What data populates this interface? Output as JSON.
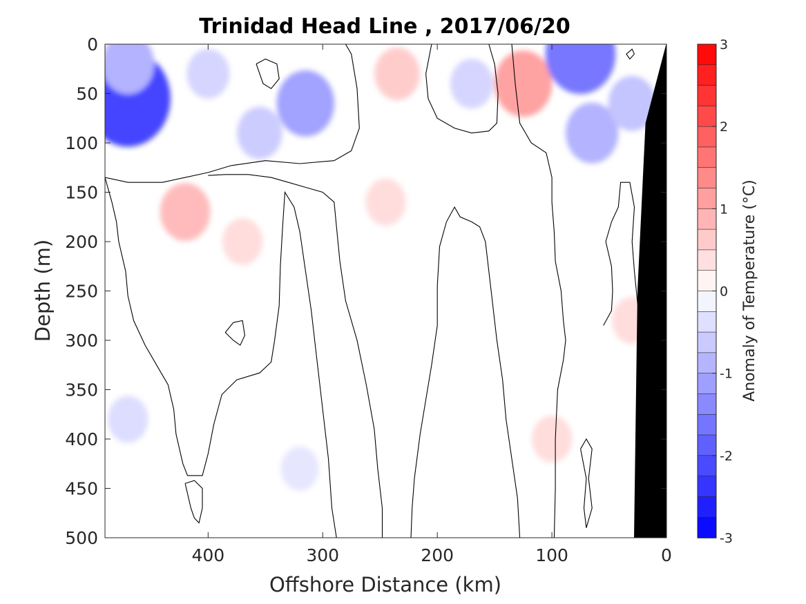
{
  "chart_data": {
    "type": "heatmap",
    "title": "Trinidad Head Line , 2017/06/20",
    "xlabel": "Offshore Distance (km)",
    "ylabel": "Depth (m)",
    "xlim": [
      490,
      0
    ],
    "ylim": [
      0,
      500
    ],
    "x_reversed": true,
    "y_reversed": true,
    "xticks": [
      400,
      300,
      200,
      100,
      0
    ],
    "yticks": [
      0,
      50,
      100,
      150,
      200,
      250,
      300,
      350,
      400,
      450,
      500
    ],
    "colorbar": {
      "label": "Anomaly of Temperature (°C)",
      "range": [
        -3,
        3
      ],
      "step": 0.25,
      "ticks": [
        3,
        2,
        1,
        0,
        -1,
        -2,
        -3
      ],
      "tick_labels": [
        "3",
        "2",
        "1",
        "0",
        "-1",
        "-2",
        "-3"
      ],
      "low_color": "#0000ff",
      "high_color": "#ff0000",
      "mid_color": "#ffffff"
    },
    "contour_levels": [
      0
    ],
    "anomaly_regions": [
      {
        "x": 470,
        "depth": 55,
        "value": -2.2
      },
      {
        "x": 470,
        "depth": 20,
        "value": -0.9
      },
      {
        "x": 400,
        "depth": 30,
        "value": -0.5
      },
      {
        "x": 355,
        "depth": 90,
        "value": -0.6
      },
      {
        "x": 315,
        "depth": 60,
        "value": -1.1
      },
      {
        "x": 235,
        "depth": 30,
        "value": 0.6
      },
      {
        "x": 245,
        "depth": 160,
        "value": 0.4
      },
      {
        "x": 420,
        "depth": 170,
        "value": 0.8
      },
      {
        "x": 370,
        "depth": 200,
        "value": 0.4
      },
      {
        "x": 170,
        "depth": 40,
        "value": -0.5
      },
      {
        "x": 125,
        "depth": 40,
        "value": 1.1
      },
      {
        "x": 75,
        "depth": 10,
        "value": -1.6
      },
      {
        "x": 65,
        "depth": 90,
        "value": -0.9
      },
      {
        "x": 30,
        "depth": 60,
        "value": -0.7
      },
      {
        "x": 470,
        "depth": 380,
        "value": -0.4
      },
      {
        "x": 320,
        "depth": 430,
        "value": -0.3
      },
      {
        "x": 100,
        "depth": 400,
        "value": 0.4
      },
      {
        "x": 30,
        "depth": 280,
        "value": 0.4
      }
    ],
    "zero_contours": [
      [
        [
          490,
          135
        ],
        [
          470,
          140
        ],
        [
          440,
          140
        ],
        [
          420,
          135
        ],
        [
          400,
          130
        ],
        [
          380,
          123
        ],
        [
          350,
          118
        ],
        [
          320,
          121
        ],
        [
          290,
          118
        ],
        [
          275,
          108
        ],
        [
          268,
          85
        ],
        [
          270,
          45
        ],
        [
          275,
          10
        ],
        [
          280,
          0
        ]
      ],
      [
        [
          490,
          135
        ],
        [
          484,
          160
        ],
        [
          480,
          180
        ],
        [
          478,
          200
        ],
        [
          472,
          230
        ],
        [
          470,
          255
        ],
        [
          465,
          280
        ],
        [
          455,
          305
        ],
        [
          445,
          325
        ],
        [
          435,
          345
        ],
        [
          430,
          370
        ],
        [
          428,
          395
        ],
        [
          422,
          425
        ],
        [
          418,
          437
        ],
        [
          405,
          437
        ],
        [
          400,
          415
        ],
        [
          395,
          385
        ],
        [
          388,
          355
        ],
        [
          375,
          340
        ],
        [
          355,
          333
        ],
        [
          345,
          322
        ],
        [
          342,
          300
        ],
        [
          338,
          265
        ],
        [
          337,
          225
        ],
        [
          335,
          185
        ],
        [
          333,
          150
        ],
        [
          325,
          165
        ],
        [
          320,
          190
        ],
        [
          315,
          230
        ],
        [
          310,
          270
        ],
        [
          305,
          320
        ],
        [
          300,
          370
        ],
        [
          295,
          420
        ],
        [
          292,
          470
        ],
        [
          288,
          500
        ]
      ],
      [
        [
          248,
          500
        ],
        [
          248,
          470
        ],
        [
          252,
          430
        ],
        [
          255,
          390
        ],
        [
          262,
          345
        ],
        [
          270,
          300
        ],
        [
          280,
          260
        ],
        [
          285,
          220
        ],
        [
          288,
          185
        ],
        [
          290,
          160
        ],
        [
          300,
          150
        ],
        [
          315,
          145
        ],
        [
          330,
          140
        ],
        [
          345,
          135
        ],
        [
          365,
          132
        ],
        [
          385,
          132
        ],
        [
          400,
          133
        ]
      ],
      [
        [
          205,
          0
        ],
        [
          210,
          30
        ],
        [
          208,
          55
        ],
        [
          200,
          75
        ],
        [
          185,
          85
        ],
        [
          170,
          90
        ],
        [
          155,
          88
        ],
        [
          148,
          80
        ],
        [
          147,
          50
        ],
        [
          150,
          20
        ],
        [
          155,
          0
        ]
      ],
      [
        [
          128,
          500
        ],
        [
          130,
          460
        ],
        [
          135,
          420
        ],
        [
          140,
          380
        ],
        [
          143,
          340
        ],
        [
          148,
          300
        ],
        [
          152,
          260
        ],
        [
          155,
          230
        ],
        [
          158,
          200
        ],
        [
          163,
          185
        ],
        [
          170,
          180
        ],
        [
          180,
          175
        ],
        [
          185,
          165
        ],
        [
          192,
          180
        ],
        [
          198,
          205
        ],
        [
          200,
          245
        ],
        [
          200,
          285
        ],
        [
          205,
          325
        ],
        [
          210,
          360
        ],
        [
          215,
          395
        ],
        [
          220,
          440
        ],
        [
          222,
          470
        ],
        [
          223,
          500
        ]
      ],
      [
        [
          135,
          0
        ],
        [
          132,
          40
        ],
        [
          128,
          80
        ],
        [
          118,
          100
        ],
        [
          105,
          110
        ],
        [
          100,
          135
        ],
        [
          100,
          160
        ],
        [
          98,
          190
        ],
        [
          97,
          220
        ],
        [
          92,
          250
        ],
        [
          90,
          280
        ],
        [
          88,
          300
        ],
        [
          90,
          320
        ],
        [
          95,
          350
        ],
        [
          97,
          400
        ],
        [
          97,
          450
        ],
        [
          98,
          500
        ]
      ],
      [
        [
          55,
          285
        ],
        [
          48,
          270
        ],
        [
          47,
          250
        ],
        [
          48,
          225
        ],
        [
          53,
          200
        ],
        [
          48,
          180
        ],
        [
          42,
          165
        ],
        [
          40,
          140
        ],
        [
          32,
          140
        ],
        [
          28,
          165
        ],
        [
          30,
          200
        ],
        [
          28,
          230
        ],
        [
          25,
          265
        ],
        [
          20,
          285
        ],
        [
          10,
          290
        ],
        [
          0,
          295
        ]
      ],
      [
        [
          75,
          410
        ],
        [
          70,
          440
        ],
        [
          72,
          470
        ],
        [
          70,
          490
        ],
        [
          65,
          470
        ],
        [
          68,
          440
        ],
        [
          65,
          410
        ],
        [
          70,
          400
        ],
        [
          75,
          410
        ]
      ],
      [
        [
          358,
          20
        ],
        [
          352,
          40
        ],
        [
          345,
          45
        ],
        [
          338,
          35
        ],
        [
          340,
          20
        ],
        [
          350,
          15
        ],
        [
          358,
          20
        ]
      ],
      [
        [
          28,
          10
        ],
        [
          32,
          15
        ],
        [
          35,
          10
        ],
        [
          30,
          5
        ],
        [
          28,
          10
        ]
      ],
      [
        [
          420,
          445
        ],
        [
          415,
          470
        ],
        [
          412,
          480
        ],
        [
          408,
          485
        ],
        [
          405,
          470
        ],
        [
          405,
          450
        ],
        [
          412,
          442
        ],
        [
          420,
          445
        ]
      ],
      [
        [
          385,
          292
        ],
        [
          378,
          300
        ],
        [
          372,
          305
        ],
        [
          368,
          295
        ],
        [
          370,
          280
        ],
        [
          378,
          282
        ],
        [
          385,
          292
        ]
      ]
    ],
    "seafloor": [
      [
        22,
        500
      ],
      [
        0,
        500
      ],
      [
        0,
        0
      ],
      [
        18,
        80
      ],
      [
        25,
        250
      ],
      [
        28,
        500
      ]
    ]
  }
}
